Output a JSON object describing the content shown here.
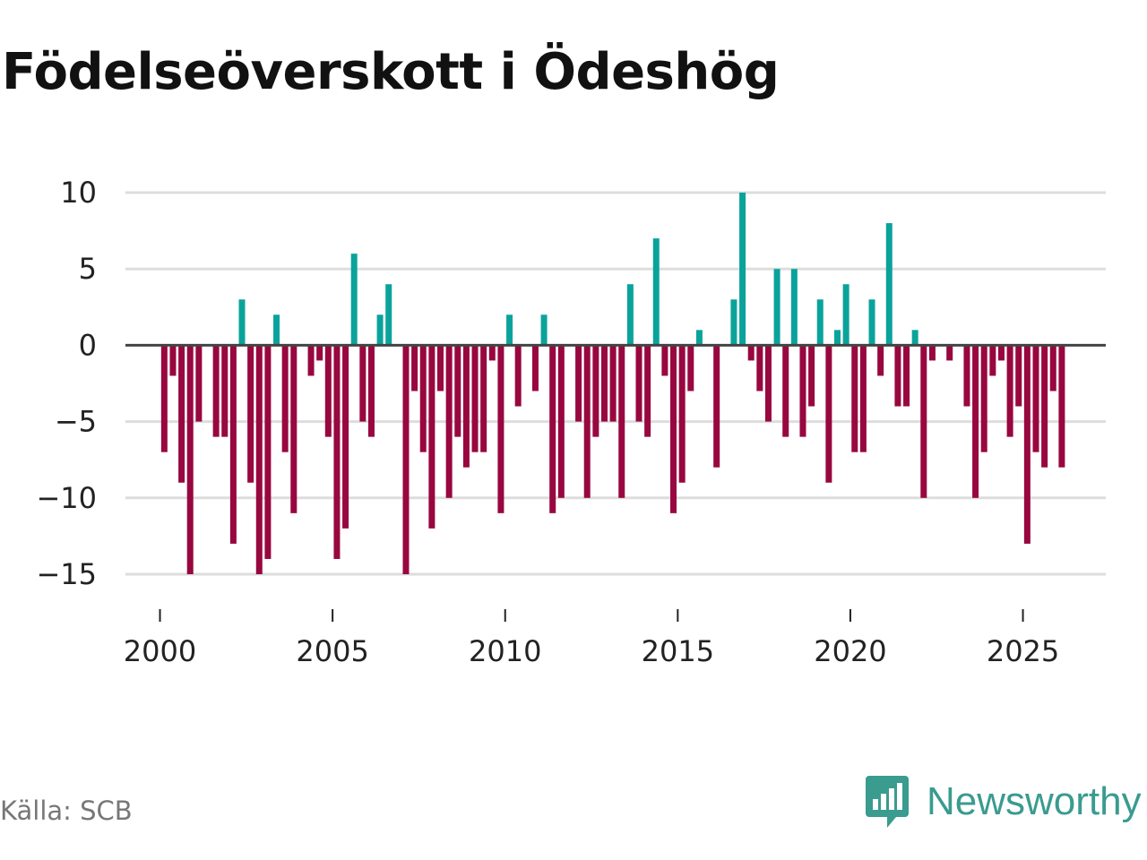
{
  "colors": {
    "positive": "#0aa39b",
    "negative": "#98073f",
    "grid": "#dddddd",
    "zero": "#444444",
    "brand": "#3a9b8f"
  },
  "footer": {
    "source": "Källa: SCB",
    "brand": "Newsworthy",
    "brand_icon": "newsworthy-logo-icon"
  },
  "chart_data": {
    "type": "bar",
    "title": "Födelseöverskott i Ödeshög",
    "xlabel": "",
    "ylabel": "",
    "ylim": [
      -15,
      10
    ],
    "xlim": [
      1999,
      2027.4
    ],
    "yticks": [
      10,
      5,
      0,
      -5,
      -10,
      -15
    ],
    "ytick_labels": [
      "10",
      "5",
      "0",
      "−5",
      "−10",
      "−15"
    ],
    "xticks": [
      2000,
      2005,
      2010,
      2015,
      2020,
      2025
    ],
    "xtick_labels": [
      "2000",
      "2005",
      "2010",
      "2015",
      "2020",
      "2025"
    ],
    "grid": true,
    "frequency": "monthly",
    "start": 2000.125,
    "step": 0.25,
    "values": [
      -7,
      -2,
      -9,
      -15,
      -5,
      0,
      -6,
      -6,
      -13,
      3,
      -9,
      -15,
      -14,
      2,
      -7,
      -11,
      0,
      -2,
      -1,
      -6,
      -14,
      -12,
      6,
      -5,
      -6,
      2,
      4,
      0,
      -15,
      -3,
      -7,
      -12,
      -3,
      -10,
      -6,
      -8,
      -7,
      -7,
      -1,
      -11,
      2,
      -4,
      0,
      -3,
      2,
      -11,
      -10,
      0,
      -5,
      -10,
      -6,
      -5,
      -5,
      -10,
      4,
      -5,
      -6,
      7,
      -2,
      -11,
      -9,
      -3,
      1,
      0,
      -8,
      0,
      3,
      10,
      -1,
      -3,
      -5,
      5,
      -6,
      5,
      -6,
      -4,
      3,
      -9,
      1,
      4,
      -7,
      -7,
      3,
      -2,
      8,
      -4,
      -4,
      1,
      -10,
      -1,
      0,
      -1,
      0,
      -4,
      -10,
      -7,
      -2,
      -1,
      -6,
      -4,
      -13,
      -7,
      -8,
      -3,
      -8
    ]
  }
}
